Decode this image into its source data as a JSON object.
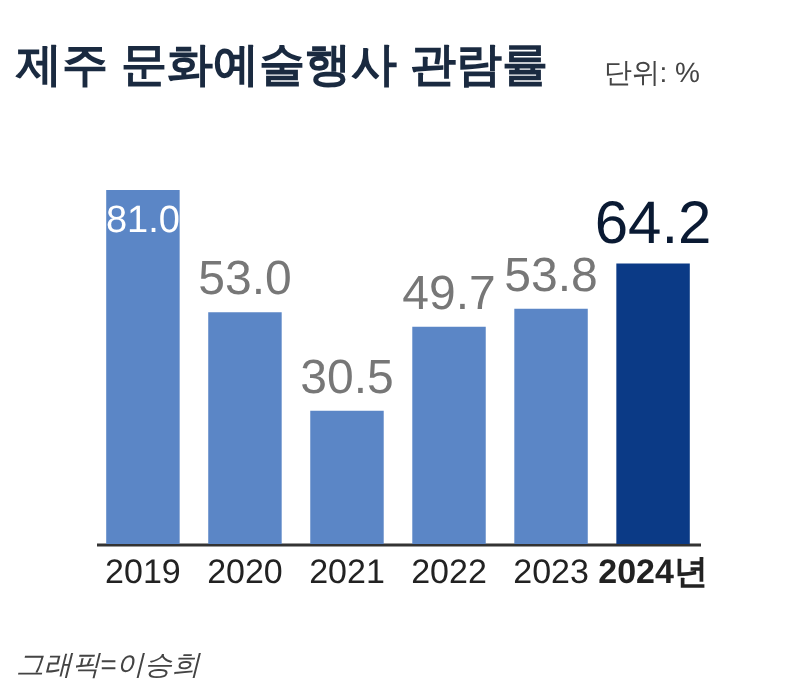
{
  "chart_data": {
    "type": "bar",
    "title": "제주 문화예술행사 관람률",
    "categories": [
      "2019",
      "2020",
      "2021",
      "2022",
      "2023",
      "2024년"
    ],
    "values": [
      81.0,
      53.0,
      30.5,
      49.7,
      53.8,
      64.2
    ],
    "colors": [
      "#5b86c6",
      "#5b86c6",
      "#5b86c6",
      "#5b86c6",
      "#5b86c6",
      "#0b3a86"
    ],
    "value_labels": [
      "81.0",
      "53.0",
      "30.5",
      "49.7",
      "53.8",
      "64.2"
    ],
    "annotations": [
      "단위: %",
      "그래픽=이승희"
    ]
  }
}
